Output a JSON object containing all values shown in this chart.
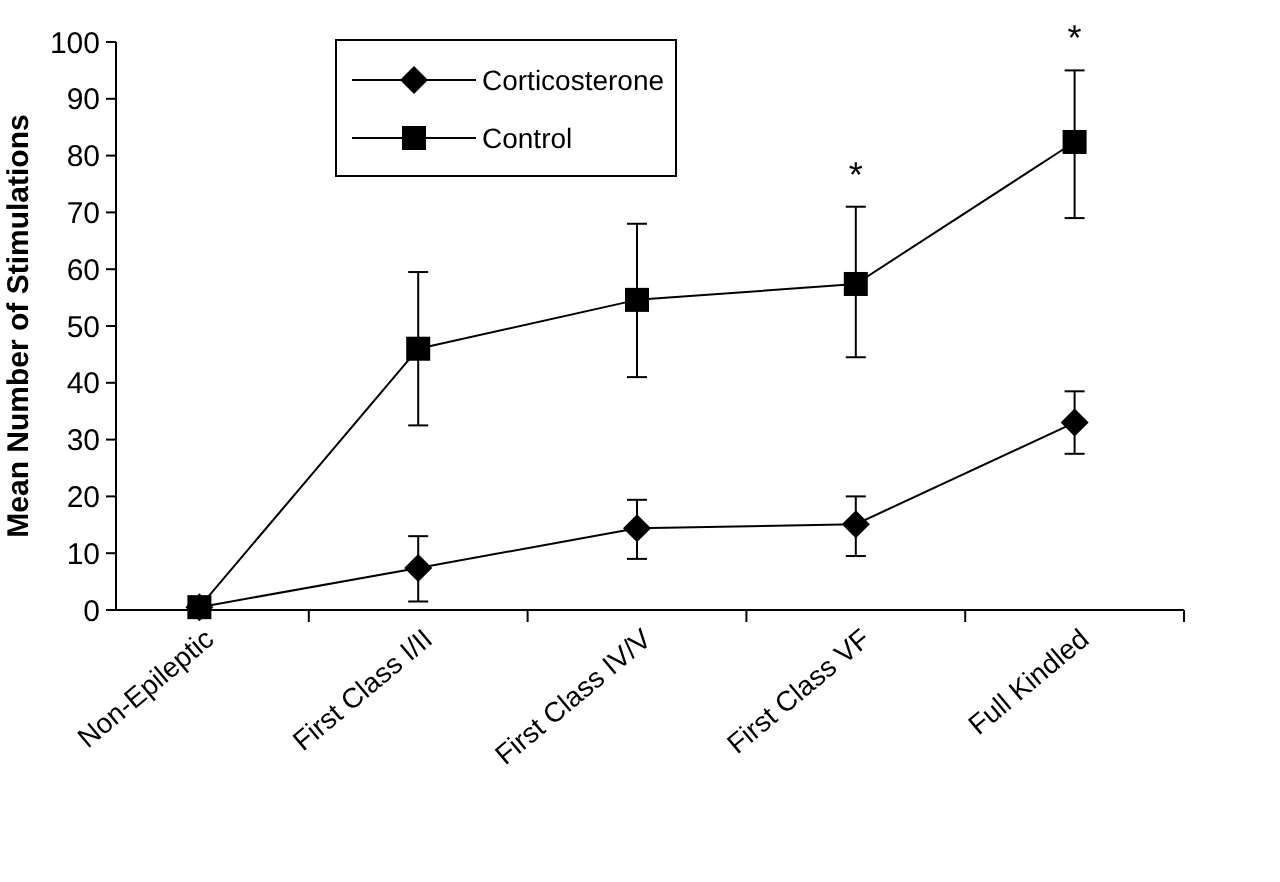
{
  "chart_data": {
    "type": "line",
    "ylabel": "Mean Number of Stimulations",
    "categories": [
      "Non-Epileptic",
      "First Class I/II",
      "First Class IV/V",
      "First Class VF",
      "Full Kindled"
    ],
    "series": [
      {
        "name": "Corticosterone",
        "color": "#000000",
        "marker": "diamond",
        "values": [
          0.5,
          7.4,
          14.4,
          15.1,
          33
        ],
        "errors": [
          null,
          [
            1.5,
            13
          ],
          [
            9,
            19.4
          ],
          [
            9.5,
            20
          ],
          [
            27.5,
            38.5
          ]
        ]
      },
      {
        "name": "Control",
        "color": "#000000",
        "marker": "square",
        "values": [
          0.5,
          46,
          54.6,
          57.4,
          82.4
        ],
        "errors": [
          null,
          [
            32.5,
            59.5
          ],
          [
            41,
            68
          ],
          [
            44.5,
            71
          ],
          [
            69,
            95
          ]
        ]
      }
    ],
    "ylim": [
      0,
      100
    ],
    "yticks": [
      0,
      10,
      20,
      30,
      40,
      50,
      60,
      70,
      80,
      90,
      100
    ],
    "grid": false,
    "legend": "top left",
    "line_style": "solid",
    "annotations": [
      {
        "text": "*",
        "x": "First Class VF",
        "y": 71
      },
      {
        "text": "*",
        "x": "Full Kindled",
        "y": 95
      }
    ]
  }
}
